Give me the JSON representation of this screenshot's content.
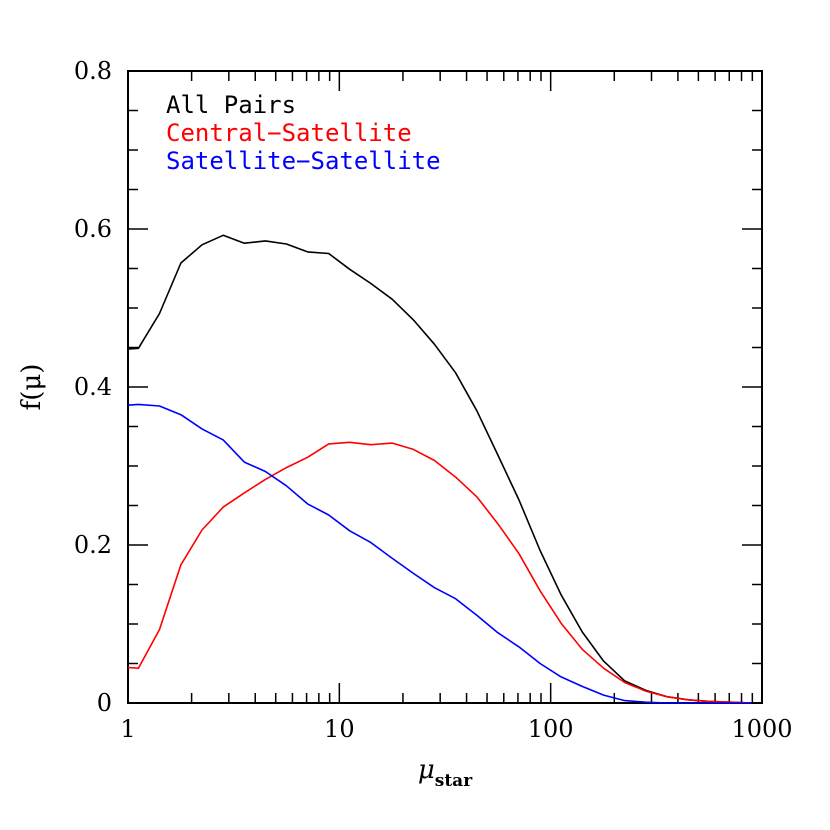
{
  "chart_data": {
    "type": "line",
    "xlabel_main": "μ",
    "xlabel_sub": "star",
    "ylabel": "f(μ)",
    "xscale": "log",
    "xlim": [
      1,
      1000
    ],
    "ylim": [
      0,
      0.8
    ],
    "xticks": [
      {
        "value": 1,
        "label": "1"
      },
      {
        "value": 10,
        "label": "10"
      },
      {
        "value": 100,
        "label": "100"
      },
      {
        "value": 1000,
        "label": "1000"
      }
    ],
    "yticks": [
      {
        "value": 0,
        "label": "0"
      },
      {
        "value": 0.2,
        "label": "0.2"
      },
      {
        "value": 0.4,
        "label": "0.4"
      },
      {
        "value": 0.6,
        "label": "0.6"
      },
      {
        "value": 0.8,
        "label": "0.8"
      }
    ],
    "grid": false,
    "legend_position": "top-left",
    "series": [
      {
        "name": "All Pairs",
        "color": "#000000",
        "x": [
          1.0,
          1.12,
          1.41,
          1.78,
          2.24,
          2.82,
          3.55,
          4.47,
          5.62,
          7.08,
          8.91,
          11.2,
          14.1,
          17.8,
          22.4,
          28.2,
          35.5,
          44.7,
          56.2,
          70.8,
          89.1,
          112,
          141,
          178,
          224,
          282,
          355,
          447,
          562,
          708,
          891
        ],
        "y": [
          0.448,
          0.449,
          0.493,
          0.557,
          0.58,
          0.592,
          0.582,
          0.585,
          0.581,
          0.571,
          0.569,
          0.549,
          0.531,
          0.511,
          0.485,
          0.454,
          0.418,
          0.37,
          0.314,
          0.257,
          0.193,
          0.137,
          0.09,
          0.053,
          0.028,
          0.016,
          0.008,
          0.004,
          0.002,
          0.001,
          0.0
        ]
      },
      {
        "name": "Central−Satellite",
        "color": "#ff0000",
        "x": [
          1.0,
          1.12,
          1.41,
          1.78,
          2.24,
          2.82,
          3.55,
          4.47,
          5.62,
          7.08,
          8.91,
          11.2,
          14.1,
          17.8,
          22.4,
          28.2,
          35.5,
          44.7,
          56.2,
          70.8,
          89.1,
          112,
          141,
          178,
          224,
          282,
          355,
          447,
          562,
          708,
          891
        ],
        "y": [
          0.045,
          0.044,
          0.093,
          0.175,
          0.219,
          0.248,
          0.266,
          0.283,
          0.298,
          0.311,
          0.328,
          0.33,
          0.327,
          0.329,
          0.321,
          0.307,
          0.286,
          0.261,
          0.227,
          0.189,
          0.142,
          0.101,
          0.068,
          0.044,
          0.026,
          0.015,
          0.008,
          0.004,
          0.002,
          0.001,
          0.0
        ]
      },
      {
        "name": "Satellite−Satellite",
        "color": "#0000ff",
        "x": [
          1.0,
          1.12,
          1.41,
          1.78,
          2.24,
          2.82,
          3.55,
          4.47,
          5.62,
          7.08,
          8.91,
          11.2,
          14.1,
          17.8,
          22.4,
          28.2,
          35.5,
          44.7,
          56.2,
          70.8,
          89.1,
          112,
          141,
          178,
          224,
          282,
          355,
          447,
          562,
          708,
          891
        ],
        "y": [
          0.377,
          0.378,
          0.376,
          0.365,
          0.347,
          0.333,
          0.305,
          0.293,
          0.275,
          0.252,
          0.238,
          0.218,
          0.203,
          0.183,
          0.164,
          0.146,
          0.132,
          0.111,
          0.089,
          0.071,
          0.05,
          0.033,
          0.021,
          0.01,
          0.003,
          0.001,
          0.0,
          0.0,
          0.0,
          0.0,
          0.0
        ]
      }
    ]
  }
}
